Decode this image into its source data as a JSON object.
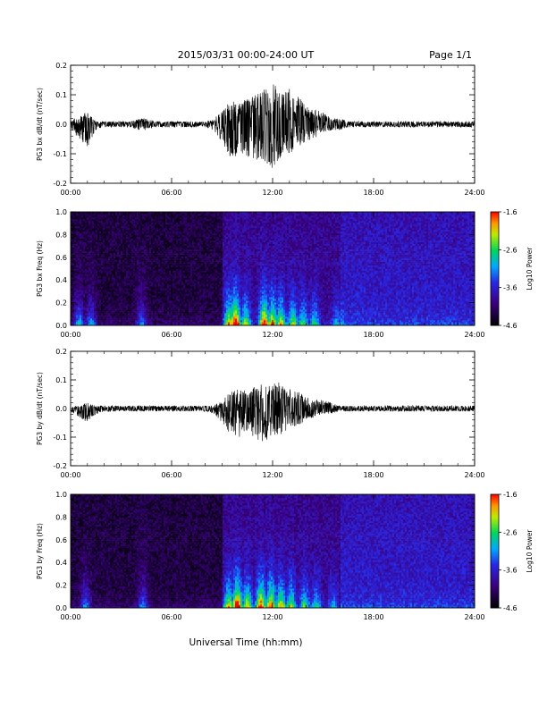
{
  "header": {
    "title": "2015/03/31  00:00-24:00 UT",
    "page": "Page 1/1"
  },
  "xlabel": "Universal Time (hh:mm)",
  "chart_data": [
    {
      "type": "line",
      "ylabel": "PG3 bx dB/dt (nT/sec)",
      "xlim": [
        0,
        24
      ],
      "ylim": [
        -0.2,
        0.2
      ],
      "x_ticks": [
        "00:00",
        "06:00",
        "12:00",
        "18:00",
        "24:00"
      ],
      "y_ticks": [
        "0.2",
        "0.1",
        "0.0",
        "-0.1",
        "-0.2"
      ],
      "series": [
        {
          "x": [
            0,
            0.5,
            1,
            1.5,
            2,
            2.5,
            3,
            3.5,
            4,
            4.5,
            5,
            5.5,
            6,
            6.5,
            7,
            7.5,
            8,
            8.5,
            9,
            9.5,
            10,
            10.5,
            11,
            11.5,
            12,
            12.5,
            13,
            13.5,
            14,
            14.5,
            15,
            15.5,
            16,
            16.5,
            17,
            17.5,
            18,
            18.5,
            19,
            19.5,
            20,
            20.5,
            21,
            21.5,
            22,
            22.5,
            23,
            23.5,
            24
          ],
          "ymax": [
            0.01,
            0.03,
            0.04,
            0.01,
            0.01,
            0.01,
            0.01,
            0.01,
            0.02,
            0.02,
            0.01,
            0.01,
            0.01,
            0.01,
            0.01,
            0.01,
            0.01,
            0.02,
            0.05,
            0.08,
            0.07,
            0.09,
            0.1,
            0.12,
            0.15,
            0.11,
            0.12,
            0.1,
            0.06,
            0.05,
            0.04,
            0.02,
            0.02,
            0.01,
            0.01,
            0.01,
            0.01,
            0.01,
            0.01,
            0.01,
            0.01,
            0.01,
            0.01,
            0.01,
            0.01,
            0.01,
            0.01,
            0.01,
            0.01
          ],
          "ymin": [
            -0.02,
            -0.05,
            -0.08,
            -0.02,
            -0.01,
            -0.01,
            -0.01,
            -0.01,
            -0.02,
            -0.02,
            -0.01,
            -0.01,
            -0.01,
            -0.01,
            -0.01,
            -0.01,
            -0.01,
            -0.02,
            -0.06,
            -0.12,
            -0.1,
            -0.11,
            -0.12,
            -0.13,
            -0.15,
            -0.11,
            -0.1,
            -0.08,
            -0.06,
            -0.05,
            -0.03,
            -0.02,
            -0.02,
            -0.01,
            -0.01,
            -0.01,
            -0.01,
            -0.01,
            -0.01,
            -0.01,
            -0.01,
            -0.01,
            -0.01,
            -0.01,
            -0.01,
            -0.01,
            -0.01,
            -0.01,
            -0.01
          ]
        }
      ]
    },
    {
      "type": "heatmap",
      "ylabel": "PG3 bx Freq (Hz)",
      "xlim": [
        0,
        24
      ],
      "ylim": [
        0,
        1.0
      ],
      "x_ticks": [
        "00:00",
        "06:00",
        "12:00",
        "18:00",
        "24:00"
      ],
      "y_ticks": [
        "1.0",
        "0.8",
        "0.6",
        "0.4",
        "0.2",
        "0.0"
      ],
      "colorbar": {
        "label": "Log10 Power",
        "range": [
          -4.6,
          -1.6
        ],
        "ticks": [
          "-1.6",
          "-2.6",
          "-3.6",
          "-4.6"
        ]
      },
      "activity_times": [
        0.5,
        1.2,
        4.2,
        9.4,
        9.8,
        10.4,
        11.5,
        12.0,
        12.5,
        13.2,
        13.8,
        14.5,
        15.8
      ],
      "activity_levels": [
        0.5,
        0.45,
        0.4,
        0.75,
        1.0,
        0.6,
        0.95,
        0.8,
        0.7,
        0.6,
        0.5,
        0.45,
        0.3
      ]
    },
    {
      "type": "line",
      "ylabel": "PG3 by dB/dt (nT/sec)",
      "xlim": [
        0,
        24
      ],
      "ylim": [
        -0.2,
        0.2
      ],
      "x_ticks": [
        "00:00",
        "06:00",
        "12:00",
        "18:00",
        "24:00"
      ],
      "y_ticks": [
        "0.2",
        "0.1",
        "0.0",
        "-0.1",
        "-0.2"
      ],
      "series": [
        {
          "x": [
            0,
            0.5,
            1,
            1.5,
            2,
            2.5,
            3,
            3.5,
            4,
            4.5,
            5,
            5.5,
            6,
            6.5,
            7,
            7.5,
            8,
            8.5,
            9,
            9.5,
            10,
            10.5,
            11,
            11.5,
            12,
            12.5,
            13,
            13.5,
            14,
            14.5,
            15,
            15.5,
            16,
            16.5,
            17,
            17.5,
            18,
            18.5,
            19,
            19.5,
            20,
            20.5,
            21,
            21.5,
            22,
            22.5,
            23,
            23.5,
            24
          ],
          "ymax": [
            0.01,
            0.01,
            0.02,
            0.01,
            0.01,
            0.01,
            0.01,
            0.01,
            0.01,
            0.01,
            0.01,
            0.01,
            0.01,
            0.01,
            0.01,
            0.01,
            0.01,
            0.01,
            0.03,
            0.06,
            0.07,
            0.06,
            0.08,
            0.09,
            0.1,
            0.09,
            0.07,
            0.06,
            0.04,
            0.03,
            0.03,
            0.02,
            0.01,
            0.01,
            0.01,
            0.01,
            0.01,
            0.01,
            0.01,
            0.01,
            0.01,
            0.01,
            0.01,
            0.01,
            0.01,
            0.01,
            0.01,
            0.01,
            0.01
          ],
          "ymin": [
            -0.01,
            -0.03,
            -0.05,
            -0.02,
            -0.01,
            -0.01,
            -0.01,
            -0.01,
            -0.01,
            -0.01,
            -0.01,
            -0.01,
            -0.01,
            -0.01,
            -0.01,
            -0.01,
            -0.01,
            -0.02,
            -0.05,
            -0.09,
            -0.1,
            -0.08,
            -0.11,
            -0.12,
            -0.09,
            -0.1,
            -0.07,
            -0.06,
            -0.04,
            -0.03,
            -0.02,
            -0.02,
            -0.01,
            -0.01,
            -0.01,
            -0.01,
            -0.01,
            -0.01,
            -0.01,
            -0.01,
            -0.01,
            -0.01,
            -0.01,
            -0.01,
            -0.01,
            -0.01,
            -0.01,
            -0.01,
            -0.01
          ]
        }
      ]
    },
    {
      "type": "heatmap",
      "ylabel": "PG3 by Freq (Hz)",
      "xlim": [
        0,
        24
      ],
      "ylim": [
        0,
        1.0
      ],
      "x_ticks": [
        "00:00",
        "06:00",
        "12:00",
        "18:00",
        "24:00"
      ],
      "y_ticks": [
        "1.0",
        "0.8",
        "0.6",
        "0.4",
        "0.2",
        "0.0"
      ],
      "colorbar": {
        "label": "Log10 Power",
        "range": [
          -4.6,
          -1.6
        ],
        "ticks": [
          "-1.6",
          "-2.6",
          "-3.6",
          "-4.6"
        ]
      },
      "activity_times": [
        0.9,
        4.3,
        9.4,
        9.9,
        10.5,
        11.3,
        11.9,
        12.5,
        13.1,
        13.9,
        14.6,
        15.6
      ],
      "activity_levels": [
        0.4,
        0.4,
        0.7,
        1.0,
        0.7,
        0.9,
        0.85,
        0.7,
        0.6,
        0.5,
        0.4,
        0.3
      ]
    }
  ]
}
